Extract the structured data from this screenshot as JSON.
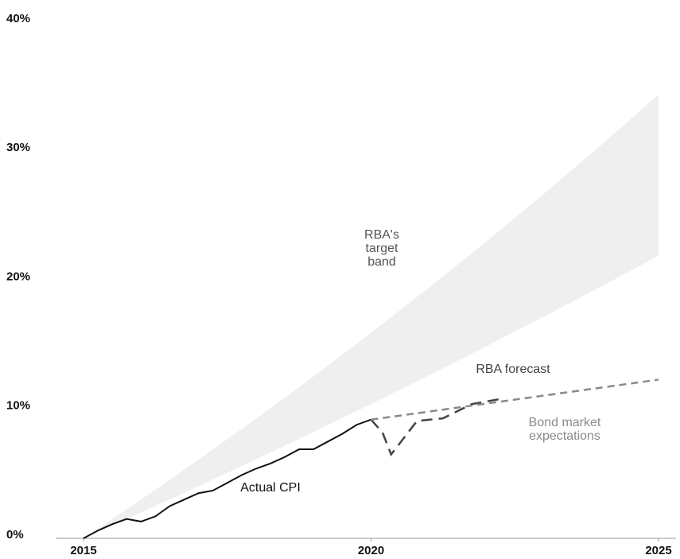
{
  "chart_data": {
    "type": "line",
    "xlim": [
      2015,
      2025
    ],
    "ylim": [
      0,
      40
    ],
    "xticks": [
      2015,
      2020,
      2025
    ],
    "yticks": [
      {
        "value": 0,
        "label": "0%"
      },
      {
        "value": 10,
        "label": "10%"
      },
      {
        "value": 20,
        "label": "20%"
      },
      {
        "value": 30,
        "label": "30%"
      },
      {
        "value": 40,
        "label": "40%"
      }
    ],
    "band": {
      "name": "RBA's target band",
      "color": "#efefef",
      "x": [
        2015,
        2016,
        2017,
        2018,
        2019,
        2020,
        2021,
        2022,
        2023,
        2024,
        2025
      ],
      "lower": [
        0,
        2.0,
        4.04,
        6.12,
        8.24,
        10.41,
        12.62,
        14.87,
        17.17,
        19.51,
        21.9
      ],
      "upper": [
        0,
        3.0,
        6.09,
        9.27,
        12.55,
        15.93,
        19.41,
        22.99,
        26.68,
        30.48,
        34.39
      ]
    },
    "series": [
      {
        "name": "Actual CPI",
        "color": "#111111",
        "dash": false,
        "x": [
          2015,
          2015.25,
          2015.5,
          2015.75,
          2016,
          2016.25,
          2016.5,
          2016.75,
          2017,
          2017.25,
          2017.5,
          2017.75,
          2018,
          2018.25,
          2018.5,
          2018.75,
          2019,
          2019.25,
          2019.5,
          2019.75,
          2020
        ],
        "values": [
          0,
          0.6,
          1.1,
          1.5,
          1.3,
          1.7,
          2.5,
          3.0,
          3.5,
          3.7,
          4.3,
          4.9,
          5.4,
          5.8,
          6.3,
          6.9,
          6.9,
          7.5,
          8.1,
          8.8,
          9.2
        ]
      },
      {
        "name": "RBA forecast",
        "color": "#444444",
        "dash": true,
        "x": [
          2020,
          2020.2,
          2020.35,
          2020.8,
          2021.25,
          2021.75,
          2022.25
        ],
        "values": [
          9.2,
          8.2,
          6.5,
          9.1,
          9.3,
          10.4,
          10.8
        ]
      },
      {
        "name": "Bond market expectations",
        "color": "#8a8a8a",
        "dash": true,
        "x": [
          2020,
          2025
        ],
        "values": [
          9.2,
          12.3
        ]
      }
    ]
  }
}
